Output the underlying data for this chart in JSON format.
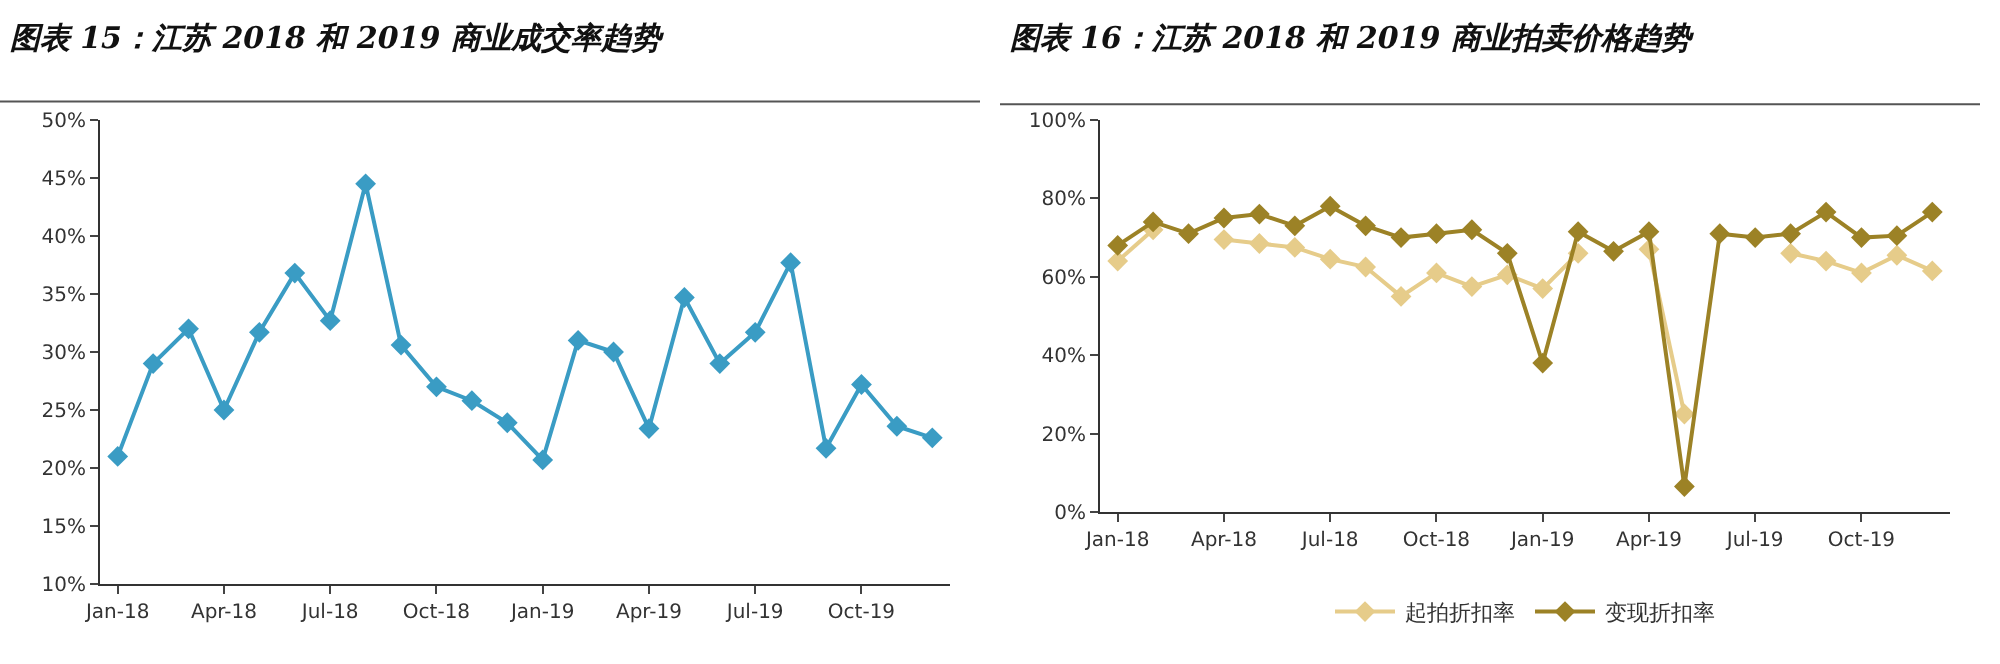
{
  "chart_data": [
    {
      "type": "line",
      "title": "图表 15：江苏 2018 和 2019 商业成交率趋势",
      "categories": [
        "Jan-18",
        null,
        null,
        "Apr-18",
        null,
        null,
        "Jul-18",
        null,
        null,
        "Oct-18",
        null,
        null,
        "Jan-19",
        null,
        null,
        "Apr-19",
        null,
        null,
        "Jul-19",
        null,
        null,
        "Oct-19",
        null,
        null
      ],
      "series": [
        {
          "color": "#3a9cc4",
          "values": [
            21,
            29,
            32,
            25,
            31.7,
            36.8,
            32.7,
            44.5,
            30.6,
            27,
            25.8,
            23.9,
            20.7,
            31,
            30,
            23.4,
            34.7,
            29,
            31.7,
            37.7,
            21.7,
            27.2,
            23.6,
            22.6
          ]
        }
      ],
      "ylim": [
        10,
        50
      ],
      "yticks": [
        {
          "value": 10,
          "label": "10%"
        },
        {
          "value": 15,
          "label": "15%"
        },
        {
          "value": 20,
          "label": "20%"
        },
        {
          "value": 25,
          "label": "25%"
        },
        {
          "value": 30,
          "label": "30%"
        },
        {
          "value": 35,
          "label": "35%"
        },
        {
          "value": 40,
          "label": "40%"
        },
        {
          "value": 45,
          "label": "45%"
        },
        {
          "value": 50,
          "label": "50%"
        }
      ],
      "grid": false,
      "legend": false,
      "marker": "diamond",
      "line_style": "solid"
    },
    {
      "type": "line",
      "title": "图表 16：江苏 2018 和 2019 商业拍卖价格趋势",
      "categories": [
        "Jan-18",
        null,
        null,
        "Apr-18",
        null,
        null,
        "Jul-18",
        null,
        null,
        "Oct-18",
        null,
        null,
        "Jan-19",
        null,
        null,
        "Apr-19",
        null,
        null,
        "Jul-19",
        null,
        null,
        "Oct-19",
        null,
        null
      ],
      "series": [
        {
          "name": "起拍折扣率",
          "color": "#e6cc8a",
          "values": [
            64,
            72,
            null,
            69.5,
            68.5,
            67.5,
            64.5,
            62.5,
            55,
            61,
            57.5,
            60.5,
            57,
            66,
            null,
            67,
            25,
            null,
            null,
            66,
            64,
            61,
            65.5,
            61.5
          ]
        },
        {
          "name": "变现折扣率",
          "color": "#9c8226",
          "values": [
            68,
            74,
            71,
            75,
            76,
            73,
            78,
            73,
            70,
            71,
            72,
            66,
            38,
            71.5,
            66.5,
            71.5,
            6.5,
            71,
            70,
            71,
            76.5,
            70,
            70.5,
            76.5
          ]
        }
      ],
      "ylim": [
        0,
        100
      ],
      "yticks": [
        {
          "value": 0,
          "label": "0%"
        },
        {
          "value": 20,
          "label": "20%"
        },
        {
          "value": 40,
          "label": "40%"
        },
        {
          "value": 60,
          "label": "60%"
        },
        {
          "value": 80,
          "label": "80%"
        },
        {
          "value": 100,
          "label": "100%"
        }
      ],
      "grid": false,
      "legend": "bottom",
      "marker": "diamond",
      "line_style": "solid"
    }
  ]
}
